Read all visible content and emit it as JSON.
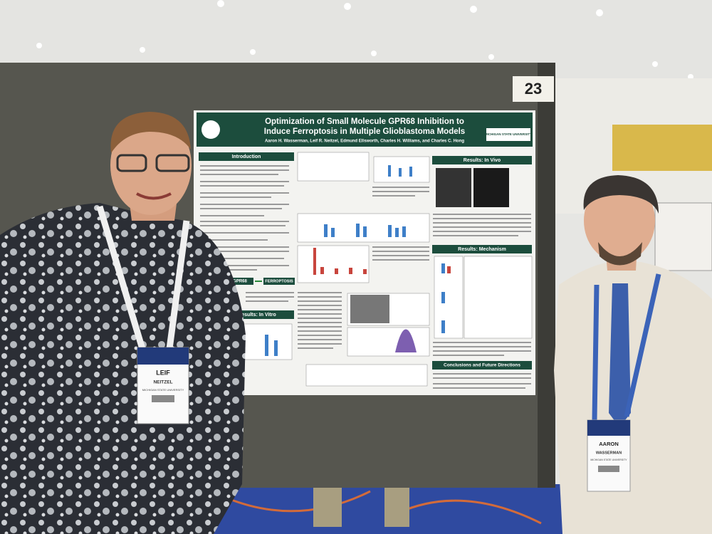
{
  "board_number": "23",
  "poster": {
    "title_lines": [
      "Optimization of Small Molecule GPR68 Inhibition to",
      "Induce Ferroptosis in Multiple Glioblastoma Models"
    ],
    "authors": "Aaron H. Wasserman, Leif R. Neitzel, Edmund Ellsworth, Charles H. Williams, and Charles C. Hong",
    "logo": "MICHIGAN STATE UNIVERSITY",
    "sections": [
      "Introduction",
      "Results: In Vivo",
      "Results: In Vitro",
      "Results: Mechanism",
      "Conclusions and Future Directions"
    ],
    "pathway": [
      "GPR68",
      "FERROPTOSIS"
    ]
  },
  "badges": [
    {
      "first": "LEIF",
      "last": "NEITZEL",
      "org": "MICHIGAN STATE UNIVERSITY"
    },
    {
      "first": "AARON",
      "last": "WASSERMAN",
      "org": "MICHIGAN STATE UNIVERSITY"
    }
  ]
}
